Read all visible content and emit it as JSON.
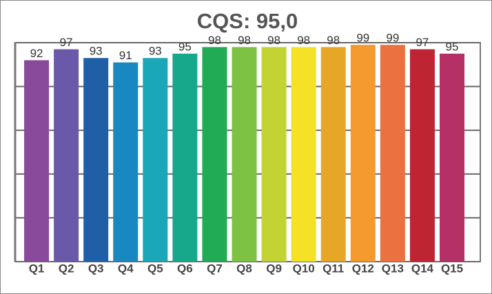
{
  "chart_data": {
    "type": "bar",
    "title": "CQS: 95,0",
    "categories": [
      "Q1",
      "Q2",
      "Q3",
      "Q4",
      "Q5",
      "Q6",
      "Q7",
      "Q8",
      "Q9",
      "Q10",
      "Q11",
      "Q12",
      "Q13",
      "Q14",
      "Q15"
    ],
    "values": [
      92,
      97,
      93,
      91,
      93,
      95,
      98,
      98,
      98,
      98,
      98,
      99,
      99,
      97,
      95
    ],
    "colors": [
      "#8a4a9c",
      "#6a58a8",
      "#1f5fa8",
      "#1a88c0",
      "#1aa8b8",
      "#17a88c",
      "#22ab55",
      "#7dc242",
      "#c4d334",
      "#f5e227",
      "#e8a626",
      "#f59a2f",
      "#eb7240",
      "#bf2433",
      "#b53064"
    ],
    "ylim": [
      0,
      100
    ],
    "yticks": [
      0,
      20,
      40,
      60,
      80,
      100
    ],
    "grid": true
  }
}
